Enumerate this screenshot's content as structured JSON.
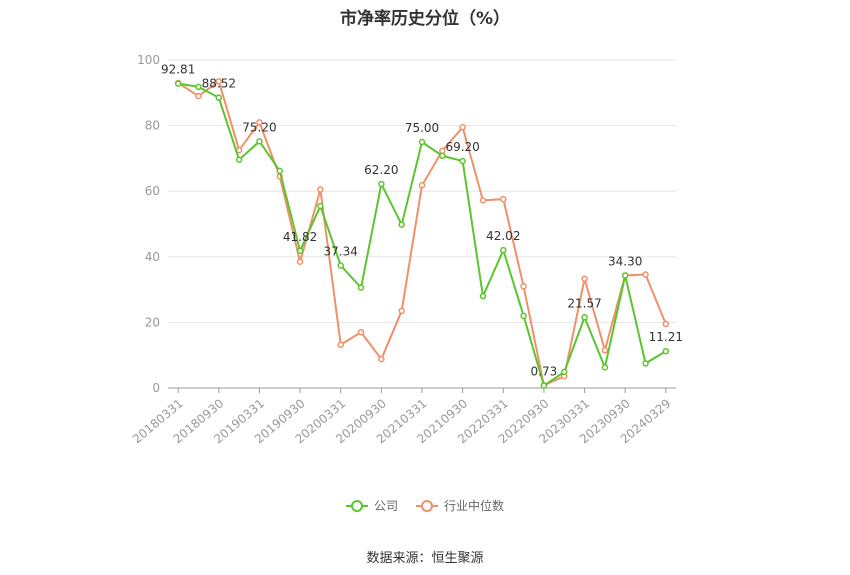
{
  "chart_data": {
    "type": "line",
    "title": "市净率历史分位（%）",
    "ylim": [
      0,
      100
    ],
    "yticks": [
      0,
      20,
      40,
      60,
      80,
      100
    ],
    "x": [
      "20180331",
      "20180630",
      "20180930",
      "20181231",
      "20190331",
      "20190630",
      "20190930",
      "20191231",
      "20200331",
      "20200630",
      "20200930",
      "20201231",
      "20210331",
      "20210630",
      "20210930",
      "20211231",
      "20220331",
      "20220630",
      "20220930",
      "20221231",
      "20230331",
      "20230630",
      "20230930",
      "20231231",
      "20240329"
    ],
    "xtick_labels": [
      "20180331",
      "20180930",
      "20190331",
      "20190930",
      "20200331",
      "20200930",
      "20210331",
      "20210930",
      "20220331",
      "20220930",
      "20230331",
      "20230930",
      "20240329"
    ],
    "series": [
      {
        "name": "公司",
        "color": "#5cc52d",
        "values": [
          92.81,
          91.8,
          88.52,
          69.6,
          75.2,
          66.2,
          41.82,
          55.5,
          37.34,
          30.6,
          62.2,
          49.8,
          75.0,
          70.8,
          69.2,
          28.0,
          42.02,
          22.0,
          0.73,
          4.9,
          21.57,
          6.3,
          34.3,
          7.5,
          11.21
        ],
        "labels": {
          "0": "92.81",
          "2": "88.52",
          "4": "75.20",
          "6": "41.82",
          "8": "37.34",
          "10": "62.20",
          "12": "75.00",
          "14": "69.20",
          "16": "42.02",
          "18": "0.73",
          "20": "21.57",
          "22": "34.30",
          "24": "11.21"
        }
      },
      {
        "name": "行业中位数",
        "color": "#f0906a",
        "values": [
          93.0,
          89.0,
          93.5,
          72.5,
          81.0,
          64.5,
          38.5,
          60.5,
          13.2,
          17.0,
          8.8,
          23.5,
          61.8,
          72.3,
          79.5,
          57.2,
          57.6,
          31.0,
          0.8,
          3.6,
          33.3,
          11.5,
          34.3,
          34.6,
          19.5
        ]
      }
    ]
  },
  "source_text": "数据来源：恒生聚源"
}
